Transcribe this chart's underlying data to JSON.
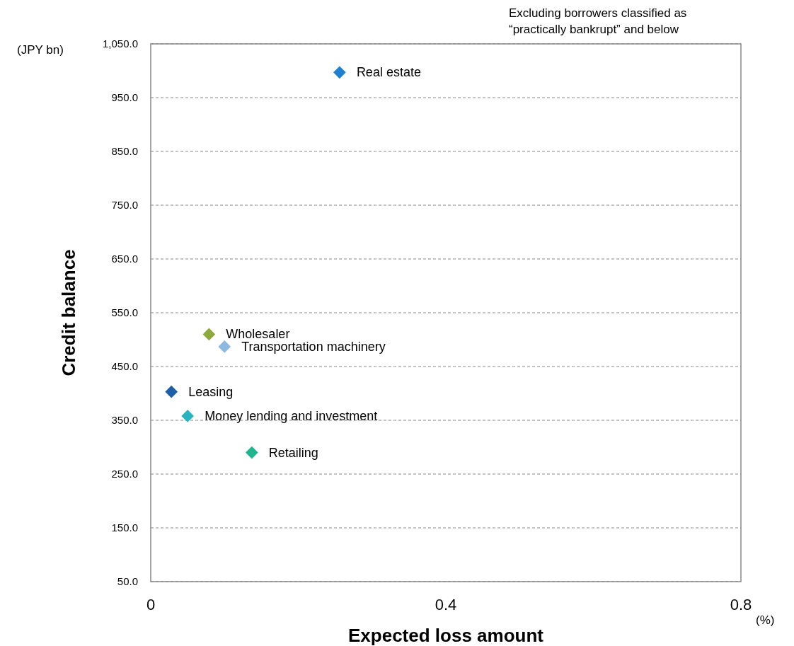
{
  "chart_data": {
    "type": "scatter",
    "xlabel": "Expected loss amount",
    "ylabel": "Credit balance",
    "annotations": [
      "(JPY bn)",
      "(%)",
      "Excluding borrowers classified as “practically bankrupt” and below"
    ],
    "xlim": [
      0,
      0.8
    ],
    "xticks": [
      0,
      0.4,
      0.8
    ],
    "ylim": [
      50,
      1050
    ],
    "yticks": [
      {
        "value": 50,
        "label": "50.0"
      },
      {
        "value": 150,
        "label": "150.0"
      },
      {
        "value": 250,
        "label": "250.0"
      },
      {
        "value": 350,
        "label": "350.0"
      },
      {
        "value": 450,
        "label": "450.0"
      },
      {
        "value": 550,
        "label": "550.0"
      },
      {
        "value": 650,
        "label": "650.0"
      },
      {
        "value": 750,
        "label": "750.0"
      },
      {
        "value": 850,
        "label": "850.0"
      },
      {
        "value": 950,
        "label": "950.0"
      },
      {
        "value": 1050,
        "label": "1,050.0"
      }
    ],
    "grid": "y",
    "marker": "diamond",
    "series": [
      {
        "name": "Real estate",
        "color": "#1f7fd0",
        "x": [
          0.256
        ],
        "values": [
          997
        ]
      },
      {
        "name": "Wholesaler",
        "color": "#8faa3c",
        "x": [
          0.079
        ],
        "values": [
          510
        ]
      },
      {
        "name": "Transportation machinery",
        "color": "#8db8e0",
        "x": [
          0.1
        ],
        "values": [
          487
        ]
      },
      {
        "name": "Leasing",
        "color": "#1f5fa8",
        "x": [
          0.028
        ],
        "values": [
          403
        ]
      },
      {
        "name": "Money lending and investment",
        "color": "#2ab3c0",
        "x": [
          0.05
        ],
        "values": [
          358
        ]
      },
      {
        "name": "Retailing",
        "color": "#1fb58e",
        "x": [
          0.137
        ],
        "values": [
          290
        ]
      }
    ]
  }
}
